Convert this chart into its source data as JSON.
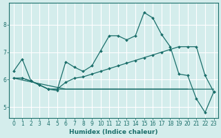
{
  "xlabel": "Humidex (Indice chaleur)",
  "background_color": "#d4edec",
  "grid_color": "#ffffff",
  "line_color": "#1a6e6a",
  "xlim": [
    -0.5,
    23.5
  ],
  "ylim": [
    4.6,
    8.8
  ],
  "xticks": [
    0,
    1,
    2,
    3,
    4,
    5,
    6,
    7,
    8,
    9,
    10,
    11,
    12,
    13,
    14,
    15,
    16,
    17,
    18,
    19,
    20,
    21,
    22,
    23
  ],
  "yticks": [
    5,
    6,
    7,
    8
  ],
  "lines": [
    {
      "x": [
        0,
        1,
        2,
        3,
        4,
        5,
        6,
        7,
        8,
        9,
        10,
        11,
        12,
        13,
        14,
        15,
        16,
        17,
        18,
        19,
        20,
        21,
        22,
        23
      ],
      "y": [
        6.3,
        6.75,
        5.95,
        5.8,
        5.65,
        5.6,
        6.65,
        6.45,
        6.3,
        6.5,
        7.05,
        7.6,
        7.6,
        7.45,
        7.6,
        8.45,
        8.25,
        7.65,
        7.2,
        6.2,
        6.15,
        5.3,
        4.8,
        5.55
      ],
      "marker": true,
      "linewidth": 0.9
    },
    {
      "x": [
        0,
        1,
        2,
        3,
        4,
        5,
        6,
        7,
        8,
        9,
        10,
        11,
        12,
        13,
        14,
        15,
        16,
        17,
        18,
        19,
        20,
        21,
        22,
        23
      ],
      "y": [
        6.05,
        6.05,
        5.95,
        5.8,
        5.65,
        5.65,
        5.9,
        6.05,
        6.1,
        6.2,
        6.3,
        6.4,
        6.5,
        6.6,
        6.7,
        6.8,
        6.9,
        7.0,
        7.1,
        7.2,
        7.2,
        7.2,
        6.15,
        5.55
      ],
      "marker": true,
      "linewidth": 0.9
    },
    {
      "x": [
        0,
        1,
        2,
        3,
        4,
        5,
        6,
        19,
        20,
        21,
        22,
        23
      ],
      "y": [
        6.05,
        6.05,
        5.95,
        5.8,
        5.65,
        5.65,
        5.65,
        5.65,
        5.65,
        5.65,
        5.65,
        5.65
      ],
      "marker": false,
      "linewidth": 0.9
    },
    {
      "x": [
        0,
        6,
        7,
        8,
        9,
        10,
        11,
        12,
        13,
        14,
        15,
        16,
        17,
        18,
        19,
        20
      ],
      "y": [
        6.05,
        5.65,
        5.65,
        5.65,
        5.65,
        5.65,
        5.65,
        5.65,
        5.65,
        5.65,
        5.65,
        5.65,
        5.65,
        5.65,
        5.65,
        5.65
      ],
      "marker": false,
      "linewidth": 0.9
    }
  ]
}
